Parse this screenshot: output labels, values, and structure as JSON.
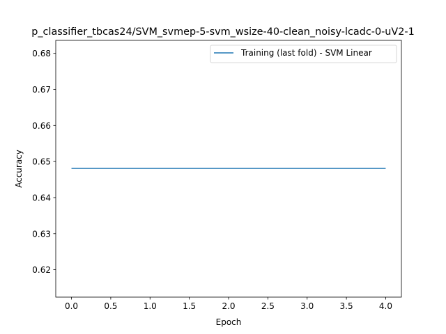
{
  "chart_data": {
    "type": "line",
    "title": "p_classifier_tbcas24/SVM_svmep-5-svm_wsize-40-clean_noisy-lcadc-0-uV2-1",
    "xlabel": "Epoch",
    "ylabel": "Accuracy",
    "xlim": [
      -0.2,
      4.2
    ],
    "ylim": [
      0.6124,
      0.6836
    ],
    "xticks": [
      0.0,
      0.5,
      1.0,
      1.5,
      2.0,
      2.5,
      3.0,
      3.5,
      4.0
    ],
    "xtick_labels": [
      "0.0",
      "0.5",
      "1.0",
      "1.5",
      "2.0",
      "2.5",
      "3.0",
      "3.5",
      "4.0"
    ],
    "yticks": [
      0.62,
      0.63,
      0.64,
      0.65,
      0.66,
      0.67,
      0.68
    ],
    "ytick_labels": [
      "0.62",
      "0.63",
      "0.64",
      "0.65",
      "0.66",
      "0.67",
      "0.68"
    ],
    "grid": false,
    "legend_position": "top-right",
    "series": [
      {
        "name": "Training (last fold) - SVM Linear",
        "color": "#1f77b4",
        "x": [
          0,
          1,
          2,
          3,
          4
        ],
        "y": [
          0.6481,
          0.6481,
          0.6481,
          0.6481,
          0.6481
        ]
      }
    ]
  }
}
